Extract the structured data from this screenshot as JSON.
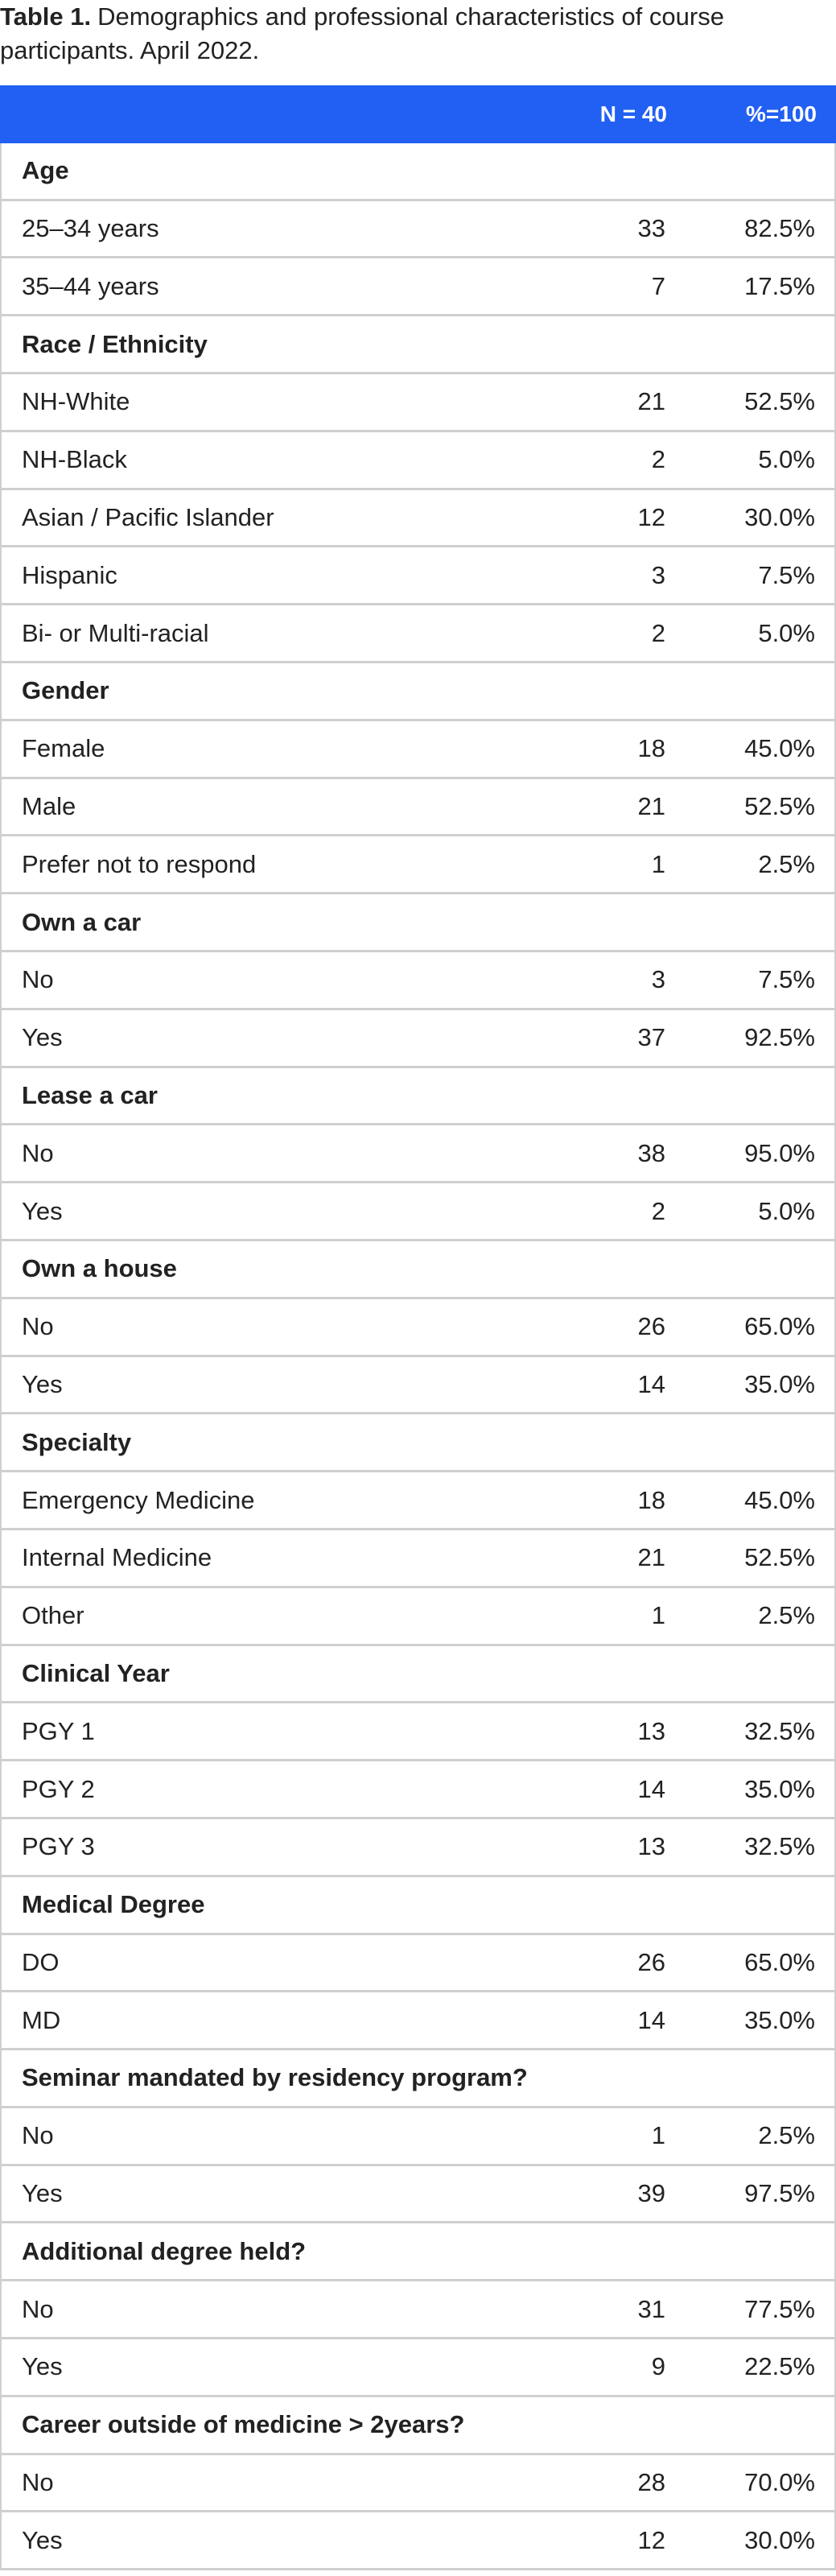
{
  "caption": {
    "label": "Table 1.",
    "text": "Demographics and professional characteristics of course participants. April 2022."
  },
  "table": {
    "header": [
      "N = 40",
      "%=100"
    ],
    "groups": [
      {
        "title": "Age",
        "rows": [
          [
            "25–34 years",
            33,
            "82.5%"
          ],
          [
            "35–44 years",
            7,
            "17.5%"
          ]
        ]
      },
      {
        "title": "Race / Ethnicity",
        "rows": [
          [
            "NH-White",
            21,
            "52.5%"
          ],
          [
            "NH-Black",
            2,
            "5.0%"
          ],
          [
            "Asian / Pacific Islander",
            12,
            "30.0%"
          ],
          [
            "Hispanic",
            3,
            "7.5%"
          ],
          [
            "Bi- or Multi-racial",
            2,
            "5.0%"
          ]
        ]
      },
      {
        "title": "Gender",
        "rows": [
          [
            "Female",
            18,
            "45.0%"
          ],
          [
            "Male",
            21,
            "52.5%"
          ],
          [
            "Prefer not to respond",
            1,
            "2.5%"
          ]
        ]
      },
      {
        "title": "Own a car",
        "rows": [
          [
            "No",
            3,
            "7.5%"
          ],
          [
            "Yes",
            37,
            "92.5%"
          ]
        ]
      },
      {
        "title": "Lease a car",
        "rows": [
          [
            "No",
            38,
            "95.0%"
          ],
          [
            "Yes",
            2,
            "5.0%"
          ]
        ]
      },
      {
        "title": "Own a house",
        "rows": [
          [
            "No",
            26,
            "65.0%"
          ],
          [
            "Yes",
            14,
            "35.0%"
          ]
        ]
      },
      {
        "title": "Specialty",
        "rows": [
          [
            "Emergency Medicine",
            18,
            "45.0%"
          ],
          [
            "Internal Medicine",
            21,
            "52.5%"
          ],
          [
            "Other",
            1,
            "2.5%"
          ]
        ]
      },
      {
        "title": "Clinical Year",
        "rows": [
          [
            "PGY 1",
            13,
            "32.5%"
          ],
          [
            "PGY 2",
            14,
            "35.0%"
          ],
          [
            "PGY 3",
            13,
            "32.5%"
          ]
        ]
      },
      {
        "title": "Medical Degree",
        "rows": [
          [
            "DO",
            26,
            "65.0%"
          ],
          [
            "MD",
            14,
            "35.0%"
          ]
        ]
      },
      {
        "title": "Seminar mandated by residency program?",
        "rows": [
          [
            "No",
            1,
            "2.5%"
          ],
          [
            "Yes",
            39,
            "97.5%"
          ]
        ]
      },
      {
        "title": "Additional degree held?",
        "rows": [
          [
            "No",
            31,
            "77.5%"
          ],
          [
            "Yes",
            9,
            "22.5%"
          ]
        ]
      },
      {
        "title": "Career outside of medicine > 2years?",
        "rows": [
          [
            "No",
            28,
            "70.0%"
          ],
          [
            "Yes",
            12,
            "30.0%"
          ]
        ]
      }
    ]
  }
}
